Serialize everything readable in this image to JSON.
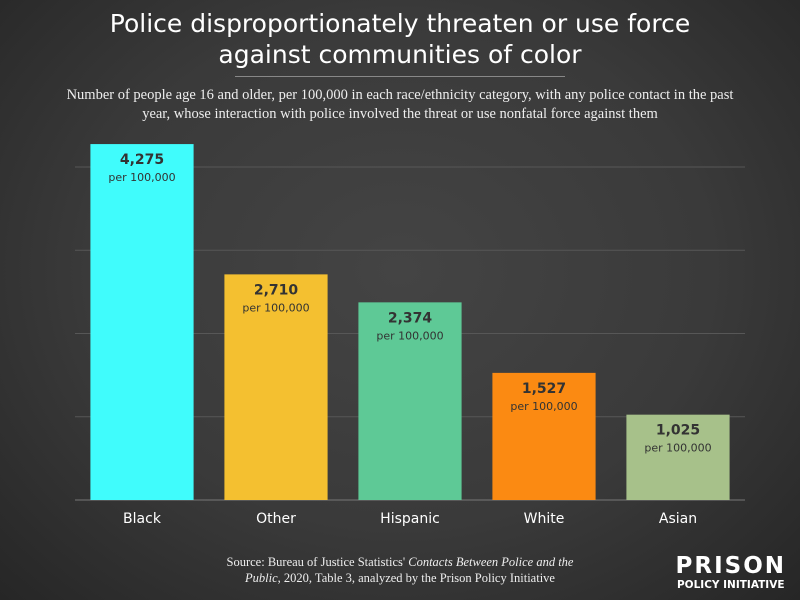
{
  "chart_data": {
    "type": "bar",
    "title": "Police disproportionately threaten or use force against communities of color",
    "subtitle": "Number of people age 16 and older, per 100,000 in each race/ethnicity category, with any police contact in the past year, whose interaction with police involved the threat or use nonfatal force against them",
    "categories": [
      "Black",
      "Other",
      "Hispanic",
      "White",
      "Asian"
    ],
    "values": [
      4275,
      2710,
      2374,
      1527,
      1025
    ],
    "value_labels": [
      "4,275",
      "2,710",
      "2,374",
      "1,527",
      "1,025"
    ],
    "value_unit": "per 100,000",
    "colors": [
      "#40fcfc",
      "#f4c030",
      "#5ec996",
      "#fb8a12",
      "#a7c18a"
    ],
    "ylim": [
      0,
      4300
    ],
    "yticks": [
      0,
      1000,
      2000,
      3000,
      4000
    ],
    "grid": true,
    "source": {
      "prefix": "Source: Bureau of Justice Statistics' ",
      "italic": "Contacts Between Police and the Public",
      "suffix": ", 2020, Table 3, analyzed by the Prison Policy Initiative"
    },
    "logo": {
      "line1": "PRISON",
      "line2": "POLICY INITIATIVE"
    }
  }
}
